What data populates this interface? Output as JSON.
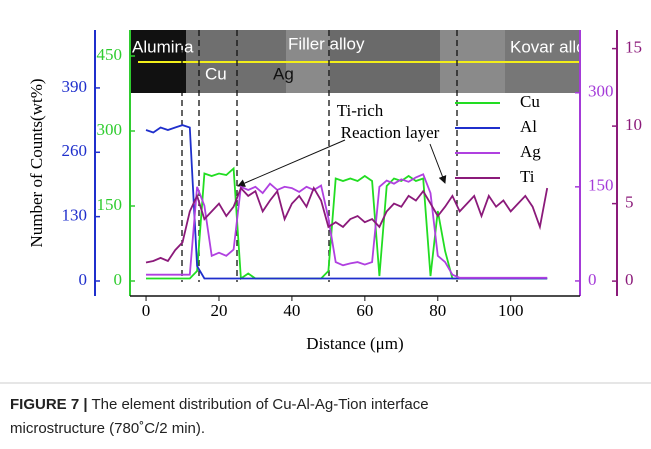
{
  "chart_data": {
    "type": "line",
    "ylabel": "Number of Counts(wt%)",
    "xlabel": "Distance (μm)",
    "xlim": [
      -4.4,
      119
    ],
    "xticks": [
      0,
      20,
      40,
      60,
      80,
      100
    ],
    "axes": [
      {
        "color": "#2fcc2f",
        "lim": [
          -30,
          502
        ],
        "ticks": [
          0,
          150,
          300,
          450
        ]
      },
      {
        "color": "#1f2fcc",
        "lim": [
          -30.3,
          507
        ],
        "ticks": [
          0,
          130,
          260,
          390
        ]
      },
      {
        "color": "#a43ad8",
        "lim": [
          -24,
          400
        ],
        "ticks": [
          0,
          150,
          300
        ]
      },
      {
        "color": "#8b1a7a",
        "lim": [
          -0.96,
          16.2
        ],
        "ticks": [
          0,
          5,
          10,
          15
        ]
      }
    ],
    "x": [
      0,
      2,
      4,
      6,
      8,
      10,
      12,
      14,
      16,
      18,
      20,
      22,
      24,
      26,
      28,
      30,
      32,
      34,
      36,
      38,
      40,
      42,
      44,
      46,
      48,
      50,
      52,
      54,
      56,
      58,
      60,
      62,
      64,
      66,
      68,
      70,
      72,
      74,
      76,
      78,
      80,
      82,
      84,
      86,
      88,
      90,
      92,
      94,
      96,
      98,
      100,
      102,
      104,
      106,
      108,
      110
    ],
    "series": [
      {
        "name": "Cu",
        "color": "#22dd22",
        "axis": 0,
        "values": [
          5,
          5,
          5,
          5,
          5,
          5,
          5,
          20,
          215,
          210,
          215,
          212,
          225,
          5,
          15,
          5,
          5,
          5,
          5,
          5,
          5,
          5,
          5,
          5,
          5,
          20,
          205,
          200,
          205,
          200,
          210,
          200,
          10,
          190,
          205,
          200,
          210,
          200,
          205,
          10,
          140,
          60,
          5,
          5,
          5,
          5,
          5,
          5,
          5,
          5,
          5,
          5,
          5,
          5,
          5,
          5
        ]
      },
      {
        "name": "Al",
        "color": "#1f2fcc",
        "axis": 1,
        "values": [
          305,
          300,
          310,
          305,
          310,
          315,
          310,
          30,
          5,
          5,
          5,
          5,
          5,
          5,
          5,
          5,
          5,
          5,
          5,
          5,
          5,
          5,
          5,
          5,
          5,
          5,
          5,
          5,
          5,
          5,
          5,
          5,
          5,
          5,
          5,
          5,
          5,
          5,
          5,
          5,
          5,
          5,
          5,
          5,
          5,
          5,
          5,
          5,
          5,
          5,
          5,
          5,
          5,
          5,
          5,
          5
        ]
      },
      {
        "name": "Ag",
        "color": "#b040e0",
        "axis": 2,
        "values": [
          10,
          10,
          10,
          10,
          10,
          10,
          10,
          150,
          120,
          40,
          45,
          40,
          50,
          150,
          145,
          150,
          140,
          155,
          145,
          150,
          148,
          142,
          150,
          145,
          152,
          100,
          30,
          25,
          28,
          30,
          26,
          30,
          150,
          160,
          155,
          162,
          158,
          165,
          170,
          140,
          40,
          30,
          10,
          5,
          5,
          5,
          5,
          5,
          5,
          5,
          5,
          5,
          5,
          5,
          5,
          5
        ]
      },
      {
        "name": "Ti",
        "color": "#8b1a7a",
        "axis": 3,
        "values": [
          1.2,
          1.3,
          1.5,
          1.3,
          2.0,
          2.5,
          4.5,
          5.5,
          4.0,
          4.5,
          5.0,
          4.2,
          4.8,
          6.0,
          5.5,
          5.8,
          4.5,
          5.2,
          5.8,
          4.0,
          5.0,
          5.5,
          4.8,
          6.0,
          5.2,
          3.5,
          3.8,
          3.5,
          4.0,
          4.2,
          3.8,
          4.0,
          3.5,
          4.5,
          5.0,
          4.8,
          5.5,
          5.2,
          5.8,
          5.0,
          4.2,
          4.8,
          5.5,
          4.5,
          5.0,
          5.5,
          4.2,
          5.5,
          4.8,
          5.2,
          4.5,
          5.0,
          5.5,
          4.8,
          3.5,
          6.0
        ]
      }
    ],
    "image_labels": {
      "alumina": "Alumina",
      "filler": "Filler alloy",
      "kovar": "Kovar alloy",
      "cu": "Cu",
      "ag": "Ag"
    },
    "annotations": [
      "Ti-rich",
      "Reaction layer"
    ],
    "legend": "top-right"
  },
  "caption": {
    "label": "FIGURE 7 |",
    "line1": "The element distribution of Cu-Al-Ag-Tion interface",
    "line2": "microstructure (780˚C/2 min)."
  }
}
